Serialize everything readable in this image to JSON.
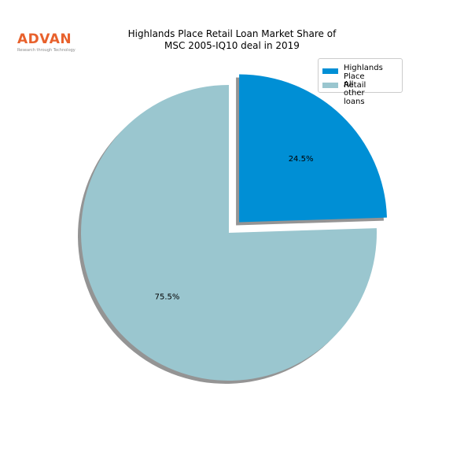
{
  "logo": {
    "brand": "ADVAN",
    "tagline": "Research through Technology",
    "color": "#e8612c"
  },
  "chart_data": {
    "type": "pie",
    "title_lines": [
      "Highlands Place Retail Loan Market Share of",
      "MSC 2005-IQ10 deal in 2019"
    ],
    "slices": [
      {
        "name": "Highlands\nPlace Retail",
        "value": 24.5,
        "label": "24.5%",
        "color": "#008fd5",
        "exploded": true
      },
      {
        "name": "All other loans",
        "value": 75.5,
        "label": "75.5%",
        "color": "#9ac6cf",
        "exploded": false
      }
    ],
    "start_angle_deg": 90,
    "shadow": true,
    "legend_position": "upper-right"
  }
}
